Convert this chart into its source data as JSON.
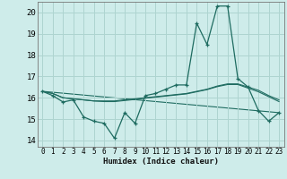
{
  "xlabel": "Humidex (Indice chaleur)",
  "bg_color": "#ceecea",
  "grid_color": "#aed4d0",
  "line_color": "#1e6b60",
  "xlim": [
    -0.5,
    23.5
  ],
  "ylim": [
    13.7,
    20.5
  ],
  "yticks": [
    14,
    15,
    16,
    17,
    18,
    19,
    20
  ],
  "xticks": [
    0,
    1,
    2,
    3,
    4,
    5,
    6,
    7,
    8,
    9,
    10,
    11,
    12,
    13,
    14,
    15,
    16,
    17,
    18,
    19,
    20,
    21,
    22,
    23
  ],
  "series_main": {
    "x": [
      0,
      1,
      2,
      3,
      4,
      5,
      6,
      7,
      8,
      9,
      10,
      11,
      12,
      13,
      14,
      15,
      16,
      17,
      18,
      19,
      20,
      21,
      22,
      23
    ],
    "y": [
      16.3,
      16.1,
      15.8,
      15.9,
      15.1,
      14.9,
      14.8,
      14.1,
      15.3,
      14.8,
      16.1,
      16.2,
      16.4,
      16.6,
      16.6,
      19.5,
      18.5,
      20.3,
      20.3,
      16.9,
      16.5,
      15.4,
      14.9,
      15.3
    ]
  },
  "series_smooth1": {
    "x": [
      0,
      1,
      2,
      3,
      4,
      5,
      6,
      7,
      8,
      9,
      10,
      11,
      12,
      13,
      14,
      15,
      16,
      17,
      18,
      19,
      20,
      21,
      22,
      23
    ],
    "y": [
      16.3,
      16.2,
      16.0,
      15.95,
      15.9,
      15.85,
      15.85,
      15.85,
      15.9,
      15.95,
      16.0,
      16.05,
      16.1,
      16.15,
      16.2,
      16.3,
      16.4,
      16.55,
      16.65,
      16.65,
      16.5,
      16.35,
      16.1,
      15.9
    ]
  },
  "series_smooth2": {
    "x": [
      0,
      1,
      2,
      3,
      4,
      5,
      6,
      7,
      8,
      9,
      10,
      11,
      12,
      13,
      14,
      15,
      16,
      17,
      18,
      19,
      20,
      21,
      22,
      23
    ],
    "y": [
      16.3,
      16.2,
      16.0,
      15.95,
      15.9,
      15.85,
      15.82,
      15.82,
      15.87,
      15.92,
      15.98,
      16.03,
      16.08,
      16.13,
      16.18,
      16.28,
      16.38,
      16.52,
      16.62,
      16.62,
      16.45,
      16.28,
      16.05,
      15.82
    ]
  },
  "series_linear": {
    "x": [
      0,
      23
    ],
    "y": [
      16.3,
      15.3
    ]
  }
}
